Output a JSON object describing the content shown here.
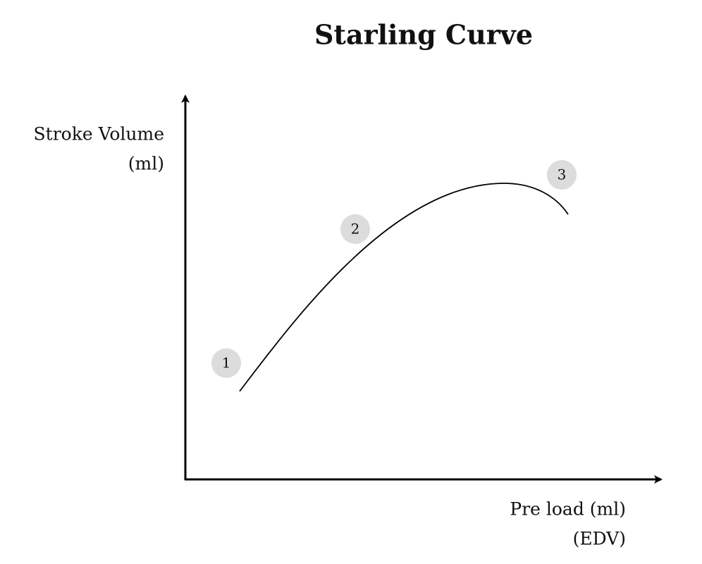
{
  "title": "Starling Curve",
  "y_axis": {
    "label_lines": [
      "Stroke Volume",
      "(ml)"
    ]
  },
  "x_axis": {
    "label_lines": [
      "Pre load (ml)",
      "(EDV)"
    ]
  },
  "markers": [
    {
      "label": "1"
    },
    {
      "label": "2"
    },
    {
      "label": "3"
    }
  ]
}
